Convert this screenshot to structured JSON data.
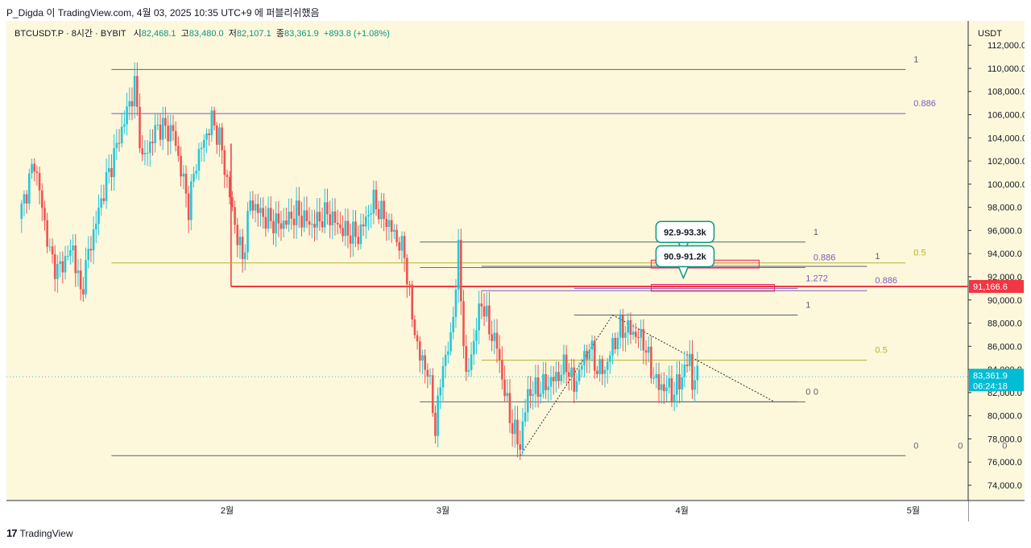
{
  "header": {
    "author_line": "P_Digda 이 TradingView.com, 4월 03, 2025 10:35 UTC+9 에 퍼블리쉬했음"
  },
  "legend": {
    "symbol": "BTCUSDT.P · 8시간 · BYBIT",
    "open_label": "시",
    "open": "82,468.1",
    "high_label": "고",
    "high": "83,480.0",
    "low_label": "저",
    "low": "82,107.1",
    "close_label": "종",
    "close": "83,361.9",
    "change": "+893.8 (+1.08%)"
  },
  "footer": {
    "brand": "TradingView",
    "logo": "17"
  },
  "colors": {
    "bg": "#fdf8dc",
    "up": "#26c6da",
    "down": "#ef5350",
    "fib_gray": "#5d606b",
    "fib_purple": "#7e57c2",
    "fib_olive": "#b5b129",
    "red_line": "#f23645"
  },
  "chart_data": {
    "type": "candlestick",
    "currency": "USDT",
    "timeframe": "8시간",
    "ylim": [
      74000,
      114000
    ],
    "y_ticks": [
      "74,000.0",
      "76,000.0",
      "78,000.0",
      "80,000.0",
      "82,000.0",
      "84,000.0",
      "86,000.0",
      "88,000.0",
      "90,000.0",
      "92,000.0",
      "94,000.0",
      "96,000.0",
      "98,000.0",
      "100,000.0",
      "102,000.0",
      "104,000.0",
      "106,000.0",
      "108,000.0",
      "110,000.0",
      "112,000.0"
    ],
    "x_ticks": [
      {
        "label": "2월",
        "date": "2025-02-01"
      },
      {
        "label": "3월",
        "date": "2025-03-01"
      },
      {
        "label": "4월",
        "date": "2025-04-01"
      },
      {
        "label": "5월",
        "date": "2025-05-01"
      }
    ],
    "last_price": {
      "value": 83361.9,
      "label": "83,361.9",
      "countdown": "06:24:18"
    },
    "red_level": {
      "value": 91166.6,
      "label": "91,166.6",
      "start_date": "2025-02-01"
    },
    "price_path": [
      [
        "2025-01-05",
        97000
      ],
      [
        "2025-01-07",
        102000
      ],
      [
        "2025-01-09",
        94000
      ],
      [
        "2025-01-10",
        92500
      ],
      [
        "2025-01-12",
        94500
      ],
      [
        "2025-01-13",
        90500
      ],
      [
        "2025-01-14",
        94000
      ],
      [
        "2025-01-16",
        99500
      ],
      [
        "2025-01-18",
        104000
      ],
      [
        "2025-01-20",
        108500
      ],
      [
        "2025-01-21",
        102000
      ],
      [
        "2025-01-23",
        105000
      ],
      [
        "2025-01-25",
        104500
      ],
      [
        "2025-01-27",
        98000
      ],
      [
        "2025-01-28",
        102000
      ],
      [
        "2025-01-30",
        105500
      ],
      [
        "2025-01-31",
        104000
      ],
      [
        "2025-02-02",
        96500
      ],
      [
        "2025-02-03",
        93500
      ],
      [
        "2025-02-04",
        98500
      ],
      [
        "2025-02-06",
        97000
      ],
      [
        "2025-02-08",
        96500
      ],
      [
        "2025-02-10",
        97500
      ],
      [
        "2025-02-12",
        96500
      ],
      [
        "2025-02-14",
        97500
      ],
      [
        "2025-02-16",
        96000
      ],
      [
        "2025-02-18",
        95500
      ],
      [
        "2025-02-20",
        98500
      ],
      [
        "2025-02-22",
        96500
      ],
      [
        "2025-02-24",
        94000
      ],
      [
        "2025-02-25",
        88500
      ],
      [
        "2025-02-26",
        85000
      ],
      [
        "2025-02-27",
        84000
      ],
      [
        "2025-02-28",
        79000
      ],
      [
        "2025-03-01",
        84500
      ],
      [
        "2025-03-02",
        86500
      ],
      [
        "2025-03-03",
        94000
      ],
      [
        "2025-03-04",
        83000
      ],
      [
        "2025-03-05",
        86500
      ],
      [
        "2025-03-06",
        90000
      ],
      [
        "2025-03-07",
        87500
      ],
      [
        "2025-03-08",
        86000
      ],
      [
        "2025-03-09",
        82000
      ],
      [
        "2025-03-10",
        79000
      ],
      [
        "2025-03-11",
        77500
      ],
      [
        "2025-03-12",
        82000
      ],
      [
        "2025-03-14",
        82500
      ],
      [
        "2025-03-16",
        83500
      ],
      [
        "2025-03-17",
        84500
      ],
      [
        "2025-03-18",
        82500
      ],
      [
        "2025-03-19",
        84500
      ],
      [
        "2025-03-20",
        86000
      ],
      [
        "2025-03-21",
        84000
      ],
      [
        "2025-03-22",
        84000
      ],
      [
        "2025-03-23",
        86000
      ],
      [
        "2025-03-24",
        87500
      ],
      [
        "2025-03-25",
        87500
      ],
      [
        "2025-03-26",
        87000
      ],
      [
        "2025-03-27",
        86500
      ],
      [
        "2025-03-28",
        84000
      ],
      [
        "2025-03-29",
        82500
      ],
      [
        "2025-03-30",
        82500
      ],
      [
        "2025-03-31",
        82000
      ],
      [
        "2025-04-01",
        83500
      ],
      [
        "2025-04-02",
        85000
      ],
      [
        "2025-04-02",
        82500
      ],
      [
        "2025-04-03",
        83362
      ]
    ],
    "fib_drawings": [
      {
        "name": "fib-big",
        "color": "#5d606b",
        "x0": "2025-01-17",
        "x1": "2025-04-30",
        "levels": [
          {
            "price": 109900,
            "labels": [
              "1"
            ]
          },
          {
            "price": 76550,
            "labels": [
              "0",
              "0",
              "0"
            ]
          }
        ]
      },
      {
        "name": "fib-886-big",
        "color": "#7e57c2",
        "x0": "2025-01-17",
        "x1": "2025-04-30",
        "levels": [
          {
            "price": 106100,
            "labels": [
              "0.886"
            ]
          }
        ]
      },
      {
        "name": "fib-half-big",
        "color": "#b5b129",
        "x0": "2025-01-17",
        "x1": "2025-04-30",
        "levels": [
          {
            "price": 93200,
            "labels": [
              "0.5"
            ]
          }
        ]
      },
      {
        "name": "fib-mid",
        "color": "#5d606b",
        "x0": "2025-02-26",
        "x1": "2025-04-17",
        "levels": [
          {
            "price": 95000,
            "labels": [
              "1"
            ]
          },
          {
            "price": 81200,
            "labels": [
              "0"
            ]
          }
        ]
      },
      {
        "name": "fib-mid-purple",
        "color": "#7e57c2",
        "x0": "2025-02-26",
        "x1": "2025-04-17",
        "levels": [
          {
            "price": 92800,
            "labels": [
              "0.886"
            ]
          }
        ]
      },
      {
        "name": "fib-right",
        "color": "#5d606b",
        "x0": "2025-03-06",
        "x1": "2025-04-25",
        "levels": [
          {
            "price": 92900,
            "labels": [
              "1"
            ]
          }
        ]
      },
      {
        "name": "fib-right-purple",
        "color": "#7e57c2",
        "x0": "2025-03-06",
        "x1": "2025-04-25",
        "levels": [
          {
            "price": 90800,
            "labels": [
              "0.886"
            ]
          }
        ]
      },
      {
        "name": "fib-right-olive",
        "color": "#b5b129",
        "x0": "2025-03-06",
        "x1": "2025-04-25",
        "levels": [
          {
            "price": 84800,
            "labels": [
              "0.5"
            ]
          }
        ]
      },
      {
        "name": "fib-small",
        "color": "#5d606b",
        "x0": "2025-03-18",
        "x1": "2025-04-16",
        "levels": [
          {
            "price": 88700,
            "labels": [
              "1"
            ]
          },
          {
            "price": 81200,
            "labels": [
              "0"
            ]
          }
        ]
      },
      {
        "name": "fib-small-purple",
        "color": "#7e57c2",
        "x0": "2025-03-18",
        "x1": "2025-04-16",
        "levels": [
          {
            "price": 91000,
            "labels": [
              "1.272"
            ]
          }
        ]
      }
    ],
    "zones": [
      {
        "label": "92.9-93.3k",
        "low": 92900,
        "high": 93300,
        "x0": "2025-03-28",
        "x1": "2025-04-11"
      },
      {
        "label": "90.9-91.2k",
        "low": 90900,
        "high": 91200,
        "x0": "2025-03-28",
        "x1": "2025-04-13"
      }
    ],
    "trendlines": [
      {
        "from": [
          "2025-03-11",
          76550
        ],
        "to": [
          "2025-03-23",
          88700
        ]
      },
      {
        "from": [
          "2025-03-23",
          88700
        ],
        "to": [
          "2025-04-13",
          81200
        ]
      }
    ]
  }
}
